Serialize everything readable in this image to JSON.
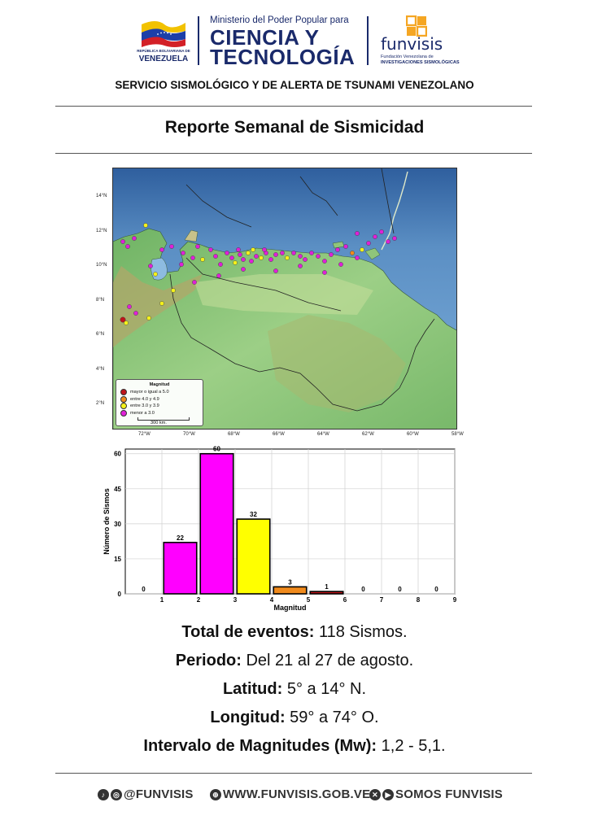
{
  "header": {
    "republic_text": "REPÚBLICA BOLIVARIANA DE",
    "country": "VENEZUELA",
    "ministry_line": "Ministerio del Poder Popular para",
    "ministry_word1": "CIENCIA Y",
    "ministry_word2": "TECNOLOGÍA",
    "org_name": "funvisis",
    "org_sub1": "Fundación Venezolana de",
    "org_sub2": "INVESTIGACIONES SISMOLÓGICAS",
    "colors": {
      "navy": "#1a2a6b",
      "flag_yellow": "#f2c200",
      "flag_blue": "#1c3fa8",
      "flag_red": "#d32027",
      "funv_orange": "#f5a623"
    }
  },
  "service_title": "SERVICIO SISMOLÓGICO Y DE ALERTA DE TSUNAMI VENEZOLANO",
  "report_title": "Reporte Semanal de Sismicidad",
  "map": {
    "lat_labels": [
      "14°N",
      "12°N",
      "10°N",
      "8°N",
      "6°N",
      "4°N",
      "2°N"
    ],
    "lon_labels": [
      "72°W",
      "70°W",
      "68°W",
      "66°W",
      "64°W",
      "62°W",
      "60°W",
      "58°W"
    ],
    "legend": {
      "title": "Magnitud",
      "items": [
        {
          "label": "mayor o igual a 5.0",
          "color": "#c0141a"
        },
        {
          "label": "entre 4.0 y 4.9",
          "color": "#f08a1c"
        },
        {
          "label": "entre 3.0 y 3.9",
          "color": "#f5f21a"
        },
        {
          "label": "menor a 3.0",
          "color": "#e020d8"
        }
      ],
      "scale_label": "300 km."
    }
  },
  "chart_data": {
    "type": "bar",
    "bins": [
      [
        0,
        1
      ],
      [
        1,
        2
      ],
      [
        2,
        3
      ],
      [
        3,
        4
      ],
      [
        4,
        5
      ],
      [
        5,
        6
      ],
      [
        6,
        7
      ],
      [
        7,
        8
      ],
      [
        8,
        9
      ]
    ],
    "values": [
      0,
      22,
      60,
      32,
      3,
      1,
      0,
      0,
      0
    ],
    "colors": [
      "#ff00ff",
      "#ff00ff",
      "#ff00ff",
      "#ffff00",
      "#f08a1c",
      "#c0141a",
      "#c0141a",
      "#c0141a",
      "#c0141a"
    ],
    "x_ticks": [
      "1",
      "2",
      "3",
      "4",
      "5",
      "6",
      "7",
      "8",
      "9"
    ],
    "y_ticks": [
      "0",
      "15",
      "30",
      "45",
      "60"
    ],
    "xlabel": "Magnitud",
    "ylabel": "Número de Sismos",
    "xlim": [
      0,
      9
    ],
    "ylim": [
      0,
      62
    ],
    "grid": true
  },
  "stats": [
    {
      "label": "Total de eventos:",
      "value": "118 Sismos."
    },
    {
      "label": "Periodo:",
      "value": "Del 21 al 27 de agosto."
    },
    {
      "label": "Latitud:",
      "value": "5° a 14° N."
    },
    {
      "label": "Longitud:",
      "value": "59° a 74° O."
    },
    {
      "label": "Intervalo de Magnitudes (Mw):",
      "value": "1,2 - 5,1."
    }
  ],
  "footer": {
    "social": "@FUNVISIS",
    "website": "WWW.FUNVISIS.GOB.VE",
    "tagline": "SOMOS FUNVISIS",
    "icons": [
      "tiktok-icon",
      "instagram-icon",
      "globe-icon",
      "x-icon",
      "youtube-icon"
    ]
  }
}
